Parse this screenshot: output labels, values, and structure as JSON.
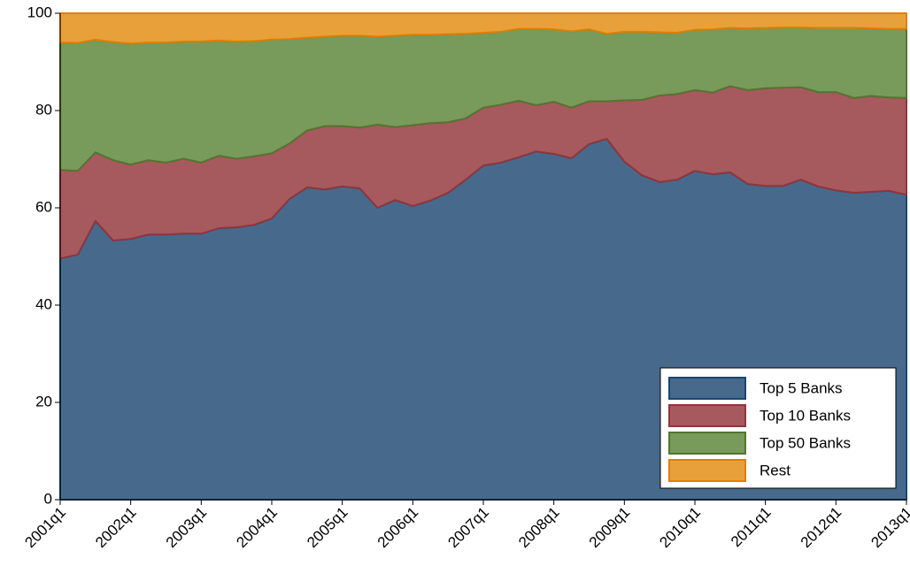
{
  "chart_data": {
    "type": "stacked_area",
    "categories": [
      "2001q1",
      null,
      null,
      null,
      "2002q1",
      null,
      null,
      null,
      "2003q1",
      null,
      null,
      null,
      "2004q1",
      null,
      null,
      null,
      "2005q1",
      null,
      null,
      null,
      "2006q1",
      null,
      null,
      null,
      "2007q1",
      null,
      null,
      null,
      "2008q1",
      null,
      null,
      null,
      "2009q1",
      null,
      null,
      null,
      "2010q1",
      null,
      null,
      null,
      "2011q1",
      null,
      null,
      null,
      "2012q1",
      null,
      null,
      null,
      "2013q1"
    ],
    "series": [
      {
        "name": "Top 5 Banks",
        "color": "#476a8c",
        "line_color": "#1a476f",
        "values": [
          49.6,
          50.4,
          57.3,
          53.3,
          53.6,
          54.5,
          54.5,
          54.7,
          54.7,
          55.8,
          56.0,
          56.5,
          57.8,
          61.8,
          64.2,
          63.8,
          64.4,
          64.0,
          60.0,
          61.6,
          60.4,
          61.5,
          63.1,
          65.8,
          68.7,
          69.3,
          70.4,
          71.6,
          71.1,
          70.2,
          73.1,
          74.2,
          69.5,
          66.7,
          65.3,
          65.8,
          67.6,
          66.9,
          67.3,
          64.9,
          64.5,
          64.5,
          65.8,
          64.4,
          63.6,
          63.1,
          63.3,
          63.5,
          62.7
        ]
      },
      {
        "name": "Top 10 Banks",
        "color": "#a65a5e",
        "line_color": "#90353b",
        "values": [
          18.2,
          17.2,
          14.1,
          16.5,
          15.3,
          15.3,
          14.8,
          15.4,
          14.6,
          14.9,
          14.1,
          14.1,
          13.4,
          11.4,
          11.7,
          13.0,
          12.4,
          12.5,
          17.1,
          15.0,
          16.6,
          15.9,
          14.5,
          12.6,
          11.9,
          11.9,
          11.6,
          9.5,
          10.7,
          10.4,
          8.8,
          7.7,
          12.6,
          15.5,
          17.8,
          17.6,
          16.6,
          16.8,
          17.7,
          19.3,
          20.1,
          20.2,
          19.0,
          19.4,
          20.2,
          19.5,
          19.7,
          19.2,
          19.9
        ]
      },
      {
        "name": "Top 50 Banks",
        "color": "#789a5a",
        "line_color": "#55752f",
        "values": [
          26.2,
          26.3,
          23.2,
          24.3,
          24.9,
          24.2,
          24.7,
          24.1,
          24.9,
          23.7,
          24.1,
          23.7,
          23.4,
          21.5,
          19.1,
          18.4,
          18.6,
          18.9,
          18.1,
          18.8,
          18.6,
          18.2,
          18.1,
          17.4,
          15.4,
          15.0,
          14.8,
          15.7,
          14.9,
          15.7,
          14.8,
          13.9,
          14.1,
          14.0,
          13.0,
          12.6,
          12.4,
          13.0,
          12.0,
          12.7,
          12.4,
          12.4,
          12.3,
          13.2,
          13.2,
          14.4,
          13.9,
          14.1,
          14.2
        ]
      },
      {
        "name": "Rest",
        "color": "#e8a13a",
        "line_color": "#e37e00",
        "values": [
          6.0,
          6.1,
          5.4,
          5.9,
          6.2,
          6.0,
          6.0,
          5.8,
          5.8,
          5.6,
          5.8,
          5.7,
          5.4,
          5.3,
          5.0,
          4.8,
          4.6,
          4.6,
          4.8,
          4.6,
          4.4,
          4.4,
          4.3,
          4.2,
          4.0,
          3.8,
          3.2,
          3.2,
          3.3,
          3.7,
          3.3,
          4.2,
          3.8,
          3.8,
          3.9,
          4.0,
          3.4,
          3.3,
          3.0,
          3.1,
          3.0,
          2.9,
          2.9,
          3.0,
          3.0,
          3.0,
          3.1,
          3.2,
          3.2
        ]
      }
    ],
    "ylim": [
      0,
      100
    ],
    "yticks": [
      0,
      20,
      40,
      60,
      80,
      100
    ],
    "grid": false,
    "legend": "bottom-right"
  }
}
